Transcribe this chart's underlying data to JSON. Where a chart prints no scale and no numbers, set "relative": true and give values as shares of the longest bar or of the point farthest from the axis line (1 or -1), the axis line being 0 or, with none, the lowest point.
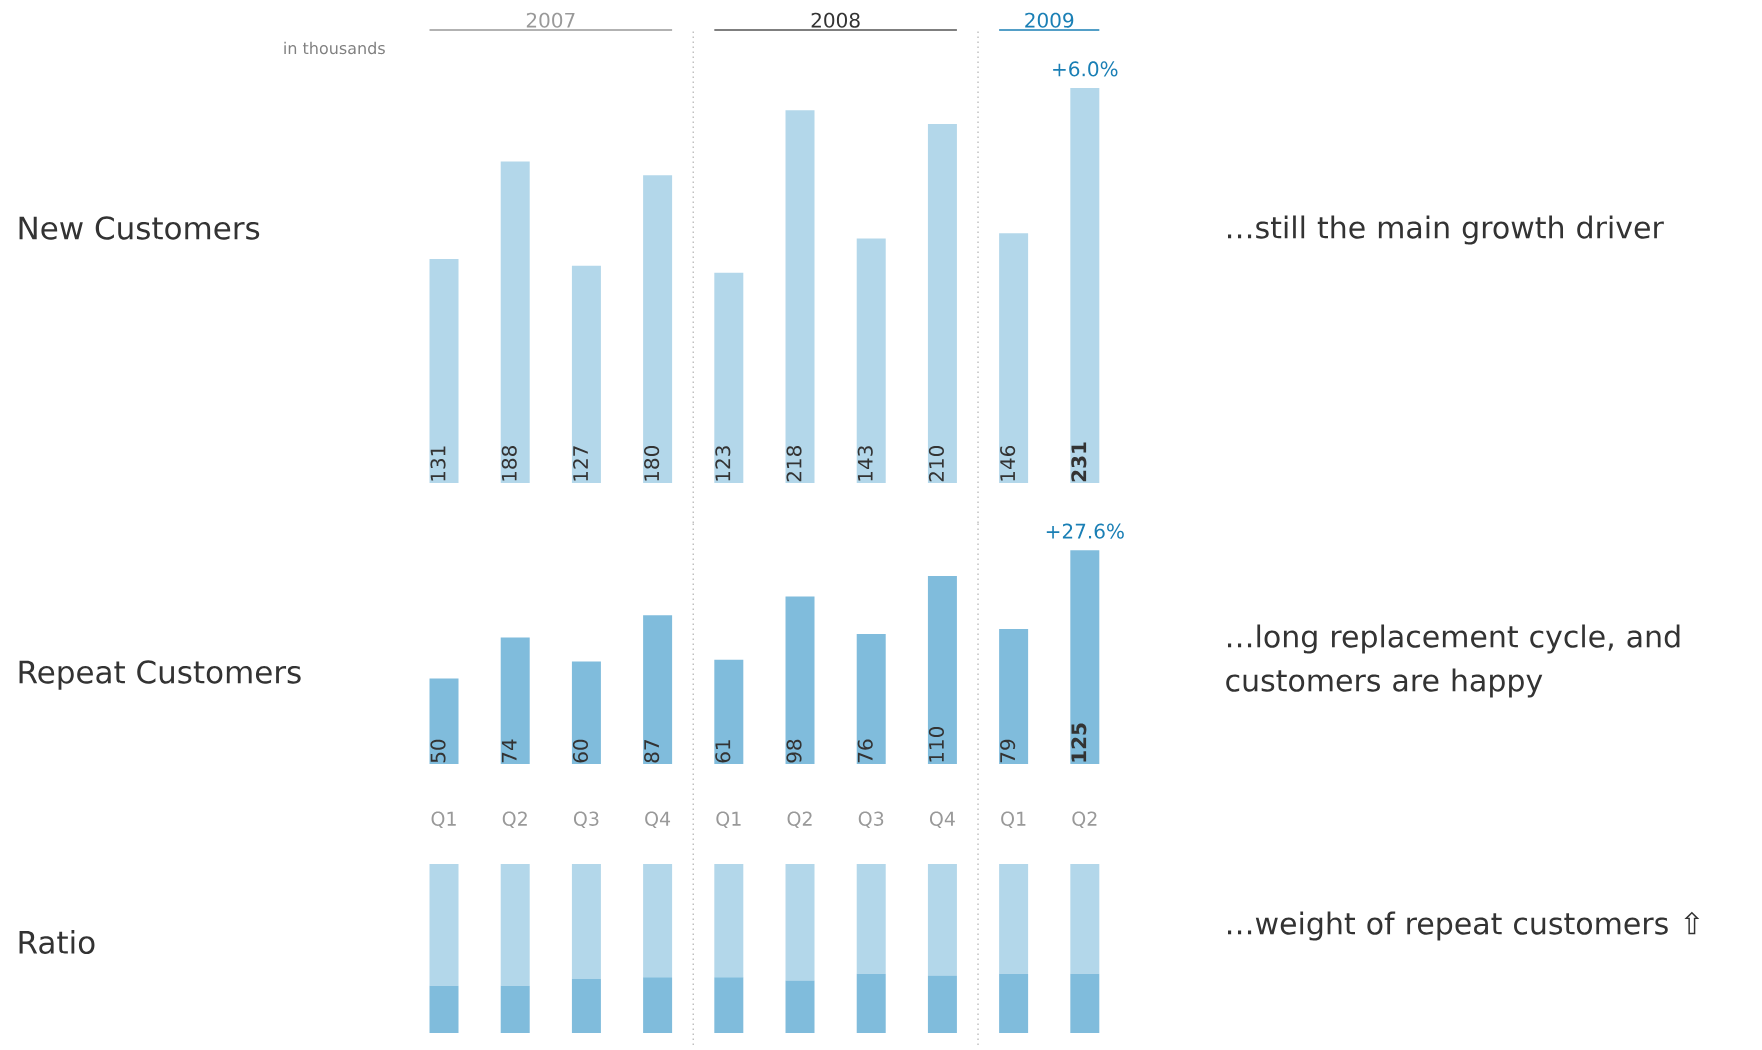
{
  "chart_data": [
    {
      "type": "bar",
      "title": "New Customers",
      "categories": [
        null,
        null,
        null,
        null,
        null,
        null,
        null,
        null,
        null,
        null
      ],
      "values": [
        131,
        188,
        127,
        180,
        123,
        218,
        143,
        210,
        146,
        231
      ],
      "color": "#b3d7ea",
      "data_labels": true,
      "annotations": [
        "in thousands",
        "2007",
        "2008",
        "2009",
        "+6.0%",
        "…still the main growth driver"
      ]
    },
    {
      "type": "bar",
      "title": "Repeat Customers",
      "categories": [
        "Q1",
        "Q2",
        "Q3",
        "Q4",
        "Q1",
        "Q2",
        "Q3",
        "Q4",
        "Q1",
        "Q2"
      ],
      "values": [
        50,
        74,
        60,
        87,
        61,
        98,
        76,
        110,
        79,
        125
      ],
      "color": "#80bcdc",
      "data_labels": true,
      "annotations": [
        "+27.6%",
        "…long replacement cycle, and customers are happy"
      ]
    },
    {
      "type": "bar",
      "annotations": [
        "Ratio",
        "…weight of repeat customers ⇧"
      ],
      "categories": [
        null,
        null,
        null,
        null,
        null,
        null,
        null,
        null,
        null,
        null
      ],
      "stacked": true,
      "relative": true,
      "series": [
        {
          "color": "#80bcdc",
          "values": [
            0.28,
            0.28,
            0.32,
            0.33,
            0.33,
            0.31,
            0.35,
            0.34,
            0.35,
            0.35
          ]
        },
        {
          "color": "#b3d7ea",
          "values": [
            0.72,
            0.72,
            0.68,
            0.67,
            0.67,
            0.69,
            0.65,
            0.66,
            0.65,
            0.65
          ]
        }
      ]
    }
  ]
}
